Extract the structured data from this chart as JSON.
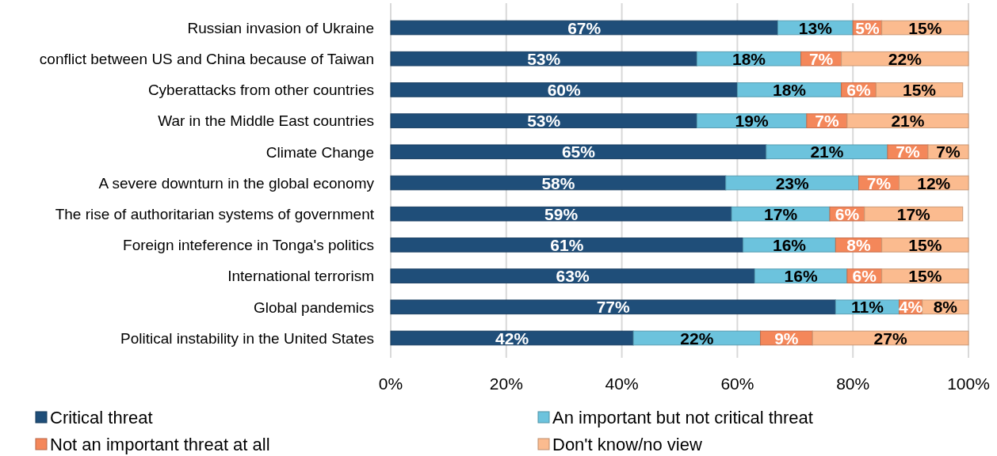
{
  "chart_data": {
    "type": "bar",
    "orientation": "horizontal",
    "stacked": true,
    "categories": [
      "Russian invasion of Ukraine",
      "conflict between US and China because of Taiwan",
      "Cyberattacks from other countries",
      "War in the Middle East countries",
      "Climate Change",
      "A severe downturn in the global economy",
      "The rise of authoritarian systems of government",
      "Foreign inteference in Tonga's politics",
      "International terrorism",
      "Global pandemics",
      "Political instability in the United States"
    ],
    "series": [
      {
        "name": "Critical threat",
        "color": "#1f4e79",
        "values": [
          67,
          53,
          60,
          53,
          65,
          58,
          59,
          61,
          63,
          77,
          42
        ],
        "value_labels": [
          "67%",
          "53%",
          "60%",
          "53%",
          "65%",
          "58%",
          "59%",
          "61%",
          "63%",
          "77%",
          "42%"
        ]
      },
      {
        "name": "An important but not critical threat",
        "color": "#6cc3dd",
        "values": [
          13,
          18,
          18,
          19,
          21,
          23,
          17,
          16,
          16,
          11,
          22
        ],
        "value_labels": [
          "13%",
          "18%",
          "18%",
          "19%",
          "21%",
          "23%",
          "17%",
          "16%",
          "16%",
          "11%",
          "22%"
        ]
      },
      {
        "name": "Not an important threat at all",
        "color": "#f4875a",
        "values": [
          5,
          7,
          6,
          7,
          7,
          7,
          6,
          8,
          6,
          4,
          9
        ],
        "value_labels": [
          "5%",
          "7%",
          "6%",
          "7%",
          "7%",
          "7%",
          "6%",
          "8%",
          "6%",
          "4%",
          "9%"
        ]
      },
      {
        "name": "Don't know/no view",
        "color": "#fbbb8f",
        "values": [
          15,
          22,
          15,
          21,
          7,
          12,
          17,
          15,
          15,
          8,
          27
        ],
        "value_labels": [
          "15%",
          "22%",
          "15%",
          "21%",
          "7%",
          "12%",
          "17%",
          "15%",
          "15%",
          "8%",
          "27%"
        ]
      }
    ],
    "xlim": [
      0,
      100
    ],
    "xticks": [
      {
        "value": 0,
        "label": "0%"
      },
      {
        "value": 20,
        "label": "20%"
      },
      {
        "value": 40,
        "label": "40%"
      },
      {
        "value": 60,
        "label": "60%"
      },
      {
        "value": 80,
        "label": "80%"
      },
      {
        "value": 100,
        "label": "100%"
      }
    ],
    "grid": "x",
    "legend": "bottom"
  }
}
